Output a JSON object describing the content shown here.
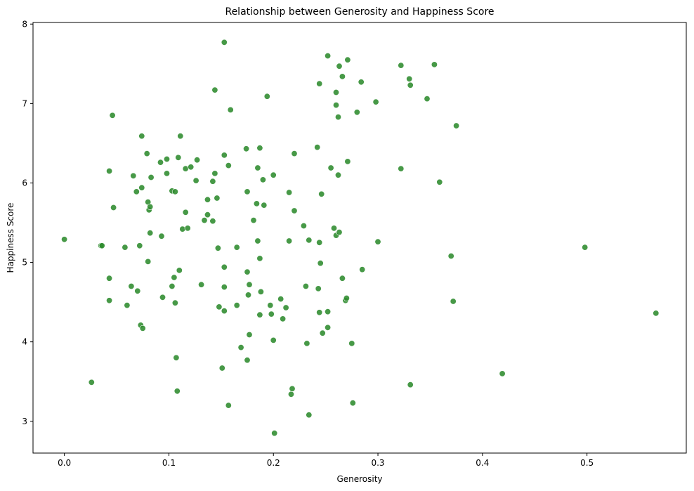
{
  "chart_data": {
    "type": "scatter",
    "title": "Relationship between Generosity and Happiness Score",
    "xlabel": "Generosity",
    "ylabel": "Happiness Score",
    "xlim": [
      -0.03,
      0.595
    ],
    "ylim": [
      2.6,
      8.02
    ],
    "xticks": [
      0.0,
      0.1,
      0.2,
      0.3,
      0.4,
      0.5
    ],
    "xtick_labels": [
      "0.0",
      "0.1",
      "0.2",
      "0.3",
      "0.4",
      "0.5"
    ],
    "yticks": [
      3,
      4,
      5,
      6,
      7,
      8
    ],
    "ytick_labels": [
      "3",
      "4",
      "5",
      "6",
      "7",
      "8"
    ],
    "grid": false,
    "legend": false,
    "point_color": "#2e8b2e",
    "points": [
      {
        "x": 0.0,
        "y": 5.29
      },
      {
        "x": 0.026,
        "y": 3.49
      },
      {
        "x": 0.035,
        "y": 5.21
      },
      {
        "x": 0.036,
        "y": 5.21
      },
      {
        "x": 0.043,
        "y": 6.15
      },
      {
        "x": 0.043,
        "y": 4.8
      },
      {
        "x": 0.043,
        "y": 4.52
      },
      {
        "x": 0.046,
        "y": 6.85
      },
      {
        "x": 0.047,
        "y": 5.69
      },
      {
        "x": 0.058,
        "y": 5.19
      },
      {
        "x": 0.06,
        "y": 4.46
      },
      {
        "x": 0.064,
        "y": 4.7
      },
      {
        "x": 0.066,
        "y": 6.09
      },
      {
        "x": 0.069,
        "y": 5.89
      },
      {
        "x": 0.07,
        "y": 4.64
      },
      {
        "x": 0.072,
        "y": 5.21
      },
      {
        "x": 0.073,
        "y": 4.21
      },
      {
        "x": 0.074,
        "y": 6.59
      },
      {
        "x": 0.074,
        "y": 5.94
      },
      {
        "x": 0.075,
        "y": 4.17
      },
      {
        "x": 0.079,
        "y": 6.37
      },
      {
        "x": 0.08,
        "y": 5.76
      },
      {
        "x": 0.08,
        "y": 5.01
      },
      {
        "x": 0.081,
        "y": 5.66
      },
      {
        "x": 0.082,
        "y": 5.7
      },
      {
        "x": 0.082,
        "y": 5.37
      },
      {
        "x": 0.083,
        "y": 6.07
      },
      {
        "x": 0.092,
        "y": 6.26
      },
      {
        "x": 0.093,
        "y": 5.33
      },
      {
        "x": 0.094,
        "y": 4.56
      },
      {
        "x": 0.098,
        "y": 6.3
      },
      {
        "x": 0.098,
        "y": 6.12
      },
      {
        "x": 0.103,
        "y": 5.9
      },
      {
        "x": 0.103,
        "y": 4.7
      },
      {
        "x": 0.105,
        "y": 4.81
      },
      {
        "x": 0.106,
        "y": 5.89
      },
      {
        "x": 0.106,
        "y": 4.49
      },
      {
        "x": 0.107,
        "y": 3.8
      },
      {
        "x": 0.108,
        "y": 3.38
      },
      {
        "x": 0.109,
        "y": 6.32
      },
      {
        "x": 0.11,
        "y": 4.9
      },
      {
        "x": 0.111,
        "y": 6.59
      },
      {
        "x": 0.113,
        "y": 5.42
      },
      {
        "x": 0.116,
        "y": 6.18
      },
      {
        "x": 0.116,
        "y": 5.63
      },
      {
        "x": 0.118,
        "y": 5.43
      },
      {
        "x": 0.121,
        "y": 6.2
      },
      {
        "x": 0.126,
        "y": 6.03
      },
      {
        "x": 0.127,
        "y": 6.29
      },
      {
        "x": 0.131,
        "y": 4.72
      },
      {
        "x": 0.134,
        "y": 5.53
      },
      {
        "x": 0.137,
        "y": 5.79
      },
      {
        "x": 0.137,
        "y": 5.6
      },
      {
        "x": 0.142,
        "y": 6.02
      },
      {
        "x": 0.142,
        "y": 5.52
      },
      {
        "x": 0.144,
        "y": 7.17
      },
      {
        "x": 0.144,
        "y": 6.12
      },
      {
        "x": 0.146,
        "y": 5.81
      },
      {
        "x": 0.147,
        "y": 5.18
      },
      {
        "x": 0.148,
        "y": 4.44
      },
      {
        "x": 0.151,
        "y": 3.67
      },
      {
        "x": 0.153,
        "y": 7.77
      },
      {
        "x": 0.153,
        "y": 6.35
      },
      {
        "x": 0.153,
        "y": 4.94
      },
      {
        "x": 0.153,
        "y": 4.69
      },
      {
        "x": 0.153,
        "y": 4.39
      },
      {
        "x": 0.157,
        "y": 6.22
      },
      {
        "x": 0.157,
        "y": 3.2
      },
      {
        "x": 0.159,
        "y": 6.92
      },
      {
        "x": 0.165,
        "y": 5.19
      },
      {
        "x": 0.165,
        "y": 4.46
      },
      {
        "x": 0.169,
        "y": 3.93
      },
      {
        "x": 0.174,
        "y": 6.43
      },
      {
        "x": 0.175,
        "y": 5.89
      },
      {
        "x": 0.175,
        "y": 4.88
      },
      {
        "x": 0.175,
        "y": 3.77
      },
      {
        "x": 0.176,
        "y": 4.59
      },
      {
        "x": 0.177,
        "y": 4.72
      },
      {
        "x": 0.177,
        "y": 4.09
      },
      {
        "x": 0.181,
        "y": 5.53
      },
      {
        "x": 0.184,
        "y": 5.74
      },
      {
        "x": 0.185,
        "y": 6.19
      },
      {
        "x": 0.185,
        "y": 5.27
      },
      {
        "x": 0.187,
        "y": 6.44
      },
      {
        "x": 0.187,
        "y": 5.05
      },
      {
        "x": 0.187,
        "y": 4.34
      },
      {
        "x": 0.188,
        "y": 4.63
      },
      {
        "x": 0.19,
        "y": 6.04
      },
      {
        "x": 0.191,
        "y": 5.72
      },
      {
        "x": 0.194,
        "y": 7.09
      },
      {
        "x": 0.197,
        "y": 4.46
      },
      {
        "x": 0.198,
        "y": 4.35
      },
      {
        "x": 0.2,
        "y": 6.1
      },
      {
        "x": 0.2,
        "y": 4.02
      },
      {
        "x": 0.201,
        "y": 2.85
      },
      {
        "x": 0.207,
        "y": 4.54
      },
      {
        "x": 0.209,
        "y": 4.29
      },
      {
        "x": 0.212,
        "y": 4.43
      },
      {
        "x": 0.215,
        "y": 5.88
      },
      {
        "x": 0.215,
        "y": 5.27
      },
      {
        "x": 0.217,
        "y": 3.34
      },
      {
        "x": 0.218,
        "y": 3.41
      },
      {
        "x": 0.22,
        "y": 6.37
      },
      {
        "x": 0.22,
        "y": 5.65
      },
      {
        "x": 0.229,
        "y": 5.46
      },
      {
        "x": 0.231,
        "y": 4.7
      },
      {
        "x": 0.232,
        "y": 3.98
      },
      {
        "x": 0.234,
        "y": 5.28
      },
      {
        "x": 0.234,
        "y": 3.08
      },
      {
        "x": 0.242,
        "y": 6.45
      },
      {
        "x": 0.243,
        "y": 4.67
      },
      {
        "x": 0.244,
        "y": 7.25
      },
      {
        "x": 0.244,
        "y": 5.25
      },
      {
        "x": 0.244,
        "y": 4.37
      },
      {
        "x": 0.245,
        "y": 4.99
      },
      {
        "x": 0.246,
        "y": 5.86
      },
      {
        "x": 0.247,
        "y": 4.11
      },
      {
        "x": 0.252,
        "y": 7.6
      },
      {
        "x": 0.252,
        "y": 4.38
      },
      {
        "x": 0.252,
        "y": 4.18
      },
      {
        "x": 0.255,
        "y": 6.19
      },
      {
        "x": 0.258,
        "y": 5.43
      },
      {
        "x": 0.26,
        "y": 7.14
      },
      {
        "x": 0.26,
        "y": 6.98
      },
      {
        "x": 0.26,
        "y": 5.34
      },
      {
        "x": 0.262,
        "y": 6.83
      },
      {
        "x": 0.262,
        "y": 6.1
      },
      {
        "x": 0.263,
        "y": 7.47
      },
      {
        "x": 0.263,
        "y": 5.38
      },
      {
        "x": 0.266,
        "y": 7.34
      },
      {
        "x": 0.266,
        "y": 4.8
      },
      {
        "x": 0.269,
        "y": 4.52
      },
      {
        "x": 0.27,
        "y": 4.55
      },
      {
        "x": 0.271,
        "y": 7.55
      },
      {
        "x": 0.271,
        "y": 6.27
      },
      {
        "x": 0.275,
        "y": 3.98
      },
      {
        "x": 0.276,
        "y": 3.23
      },
      {
        "x": 0.28,
        "y": 6.89
      },
      {
        "x": 0.284,
        "y": 7.27
      },
      {
        "x": 0.285,
        "y": 4.91
      },
      {
        "x": 0.298,
        "y": 7.02
      },
      {
        "x": 0.3,
        "y": 5.26
      },
      {
        "x": 0.322,
        "y": 7.48
      },
      {
        "x": 0.322,
        "y": 6.18
      },
      {
        "x": 0.33,
        "y": 7.31
      },
      {
        "x": 0.331,
        "y": 7.23
      },
      {
        "x": 0.331,
        "y": 3.46
      },
      {
        "x": 0.347,
        "y": 7.06
      },
      {
        "x": 0.354,
        "y": 7.49
      },
      {
        "x": 0.359,
        "y": 6.01
      },
      {
        "x": 0.37,
        "y": 5.08
      },
      {
        "x": 0.372,
        "y": 4.51
      },
      {
        "x": 0.375,
        "y": 6.72
      },
      {
        "x": 0.419,
        "y": 3.6
      },
      {
        "x": 0.498,
        "y": 5.19
      },
      {
        "x": 0.566,
        "y": 4.36
      }
    ]
  }
}
